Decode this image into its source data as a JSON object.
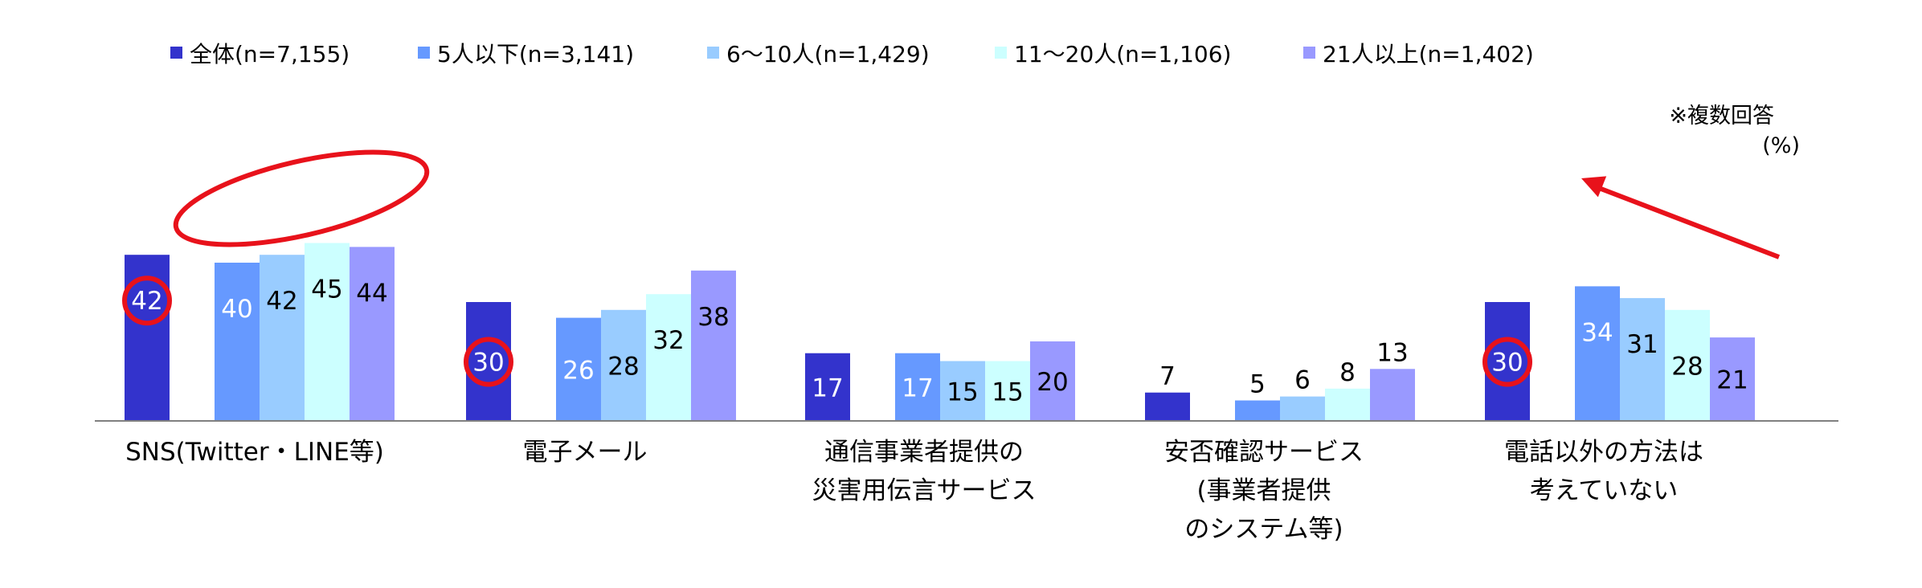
{
  "chart_data": {
    "type": "bar",
    "categories": [
      "SNS(Twitter・LINE等)",
      "電子メール",
      "通信事業者提供の\n災害用伝言サービス",
      "安否確認サービス\n(事業者提供\nのシステム等)",
      "電話以外の方法は\n考えていない"
    ],
    "series": [
      {
        "name": "全体(n=7,155)",
        "values": [
          42,
          30,
          17,
          7,
          30
        ]
      },
      {
        "name": "5人以下(n=3,141)",
        "values": [
          40,
          26,
          17,
          5,
          34
        ]
      },
      {
        "name": "6〜10人(n=1,429)",
        "values": [
          42,
          28,
          15,
          6,
          31
        ]
      },
      {
        "name": "11〜20人(n=1,106)",
        "values": [
          45,
          32,
          15,
          8,
          28
        ]
      },
      {
        "name": "21人以上(n=1,402)",
        "values": [
          44,
          38,
          20,
          13,
          21
        ]
      }
    ],
    "ylim": [
      0,
      50
    ],
    "grid": false,
    "legend_position": "top",
    "annotations": {
      "note": "※複数回答",
      "unit": "(%)"
    },
    "colors": [
      "#3333CC",
      "#6699FF",
      "#99CCFF",
      "#CCFFFF",
      "#9999FF"
    ],
    "label_colors": [
      "#FFFFFF",
      "#FFFFFF",
      "#000000",
      "#000000",
      "#000000"
    ],
    "highlight_color": "#E8121B"
  }
}
